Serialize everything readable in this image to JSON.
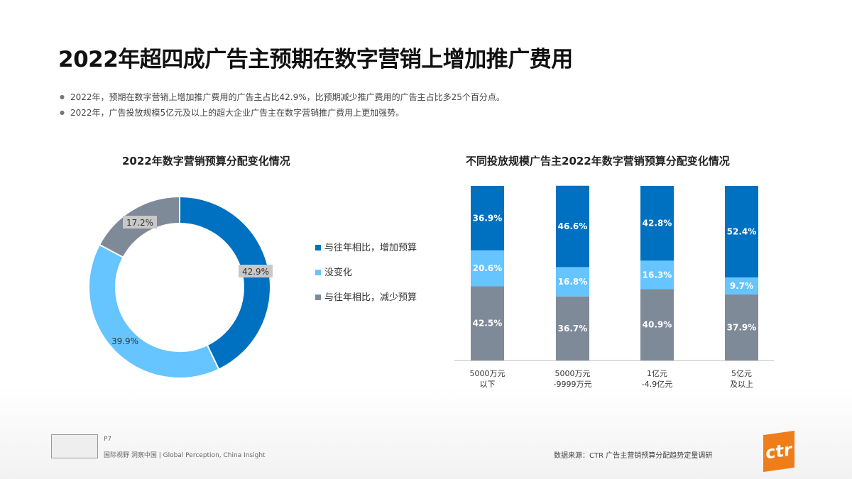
{
  "title": "2022年超四成广告主预期在数字营销上增加推广费用",
  "bullets": [
    "2022年，预期在数字营销上增加推广费用的广告主占比42.9%，比预期减少推广费用的广告主占比多25个百分点。",
    "2022年，广告投放规模5亿元及以上的超大企业广告主在数字营销推广费用上更加强势。"
  ],
  "colors": {
    "increase": "#0070c0",
    "nochange": "#66c4ff",
    "decrease": "#7f8a99"
  },
  "chart_data": [
    {
      "type": "pie",
      "title": "2022年数字营销预算分配变化情况",
      "donut": true,
      "categories": [
        "与往年相比，增加预算",
        "没变化",
        "与往年相比，减少预算"
      ],
      "values": [
        42.9,
        39.9,
        17.2
      ],
      "labels": [
        "42.9%",
        "39.9%",
        "17.2%"
      ],
      "legend": "right"
    },
    {
      "type": "bar",
      "stacked": true,
      "title": "不同投放规模广告主2022年数字营销预算分配变化情况",
      "categories": [
        [
          "5000万元",
          "以下"
        ],
        [
          "5000万元",
          "-9999万元"
        ],
        [
          "1亿元",
          "-4.9亿元"
        ],
        [
          "5亿元",
          "及以上"
        ]
      ],
      "series": [
        {
          "name": "与往年相比，减少预算",
          "values": [
            42.5,
            36.7,
            40.9,
            37.9
          ],
          "labels": [
            "42.5%",
            "36.7%",
            "40.9%",
            "37.9%"
          ]
        },
        {
          "name": "没变化",
          "values": [
            20.6,
            16.8,
            16.3,
            9.7
          ],
          "labels": [
            "20.6%",
            "16.8%",
            "16.3%",
            "9.7%"
          ]
        },
        {
          "name": "与往年相比，增加预算",
          "values": [
            36.9,
            46.6,
            42.8,
            52.4
          ],
          "labels": [
            "36.9%",
            "46.6%",
            "42.8%",
            "52.4%"
          ]
        }
      ],
      "ylim": [
        0,
        100
      ]
    }
  ],
  "footer": {
    "page": "P7",
    "slogan": "国际视野 洞察中国 | Global Perception, China Insight",
    "source": "数据来源：CTR 广告主营销预算分配趋势定量调研",
    "logo": "ctr"
  }
}
